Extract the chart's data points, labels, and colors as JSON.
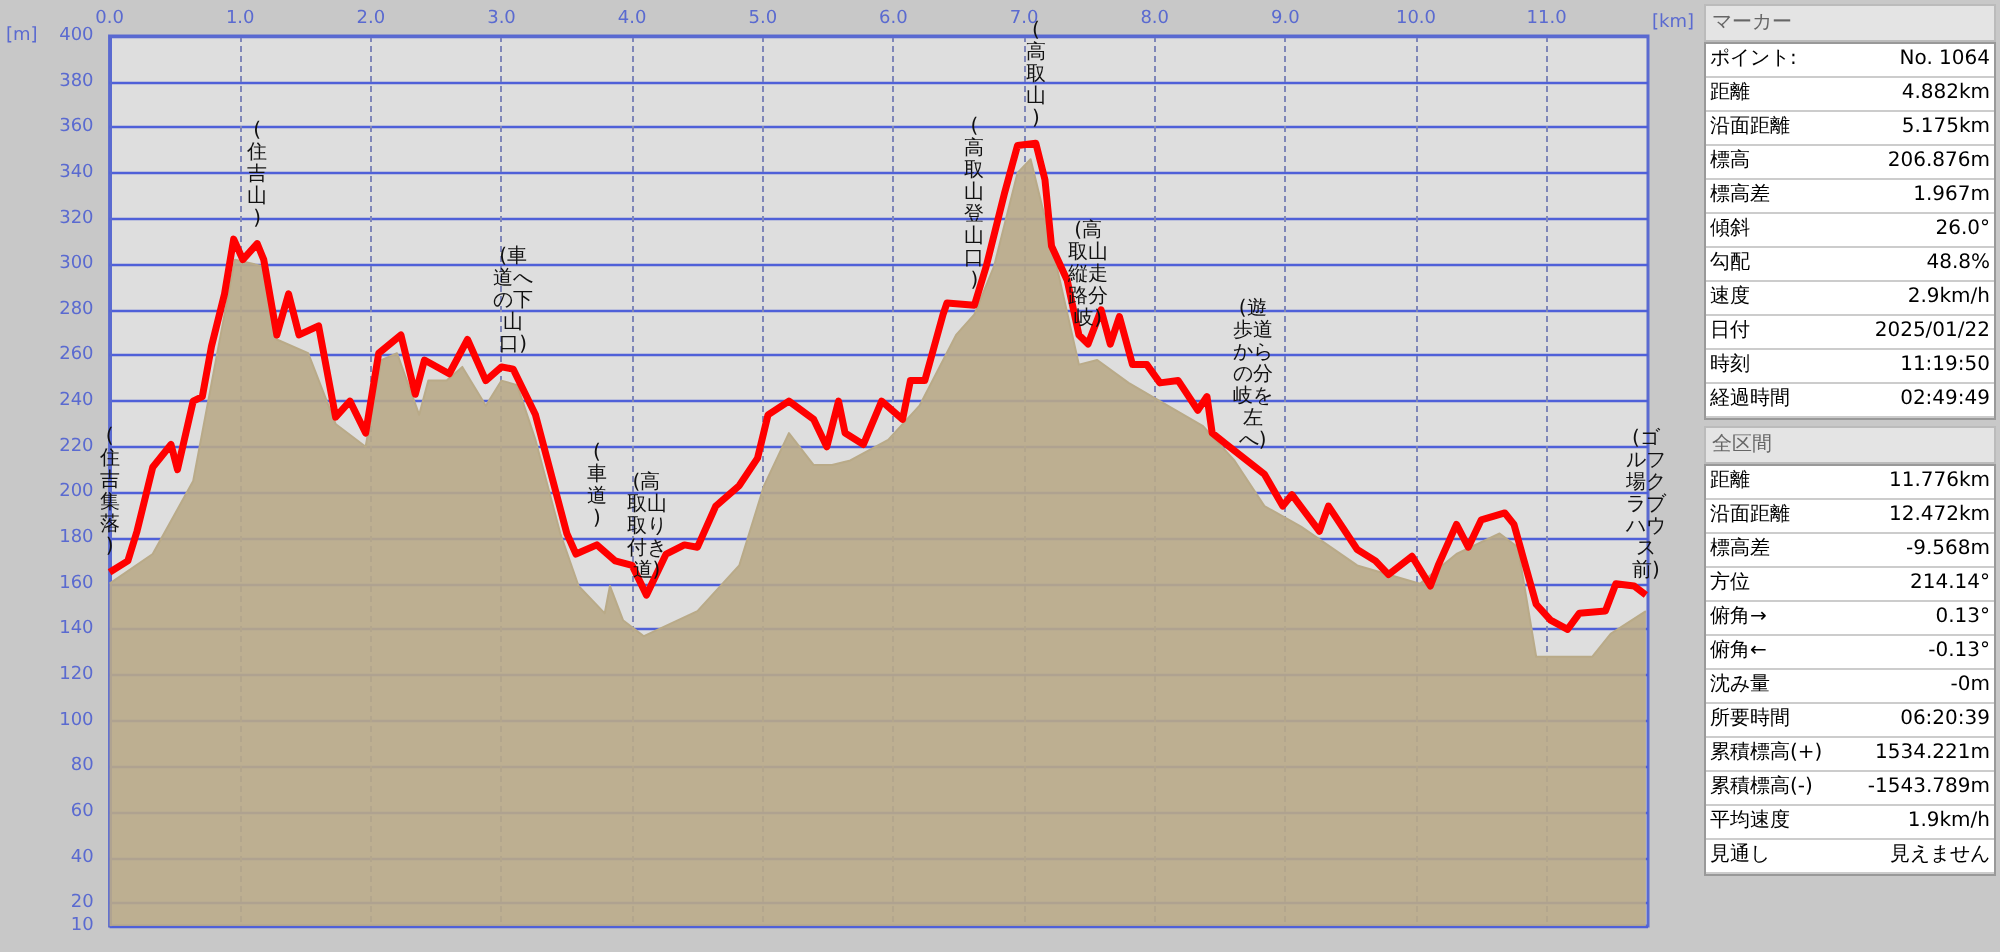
{
  "chart_data": [
    {
      "type": "line",
      "xlabel": "[km]",
      "ylabel": "[m]",
      "xlim": [
        0,
        11.776
      ],
      "ylim": [
        10,
        400
      ],
      "xticks": [
        {
          "value": 0,
          "label": "0.0"
        },
        {
          "value": 1,
          "label": "1.0"
        },
        {
          "value": 2,
          "label": "2.0"
        },
        {
          "value": 3,
          "label": "3.0"
        },
        {
          "value": 4,
          "label": "4.0"
        },
        {
          "value": 5,
          "label": "5.0"
        },
        {
          "value": 6,
          "label": "6.0"
        },
        {
          "value": 7,
          "label": "7.0"
        },
        {
          "value": 8,
          "label": "8.0"
        },
        {
          "value": 9,
          "label": "9.0"
        },
        {
          "value": 10,
          "label": "10.0"
        },
        {
          "value": 11,
          "label": "11.0"
        }
      ],
      "yticks": [
        10,
        20,
        40,
        60,
        80,
        100,
        120,
        140,
        160,
        180,
        200,
        220,
        240,
        260,
        280,
        300,
        320,
        340,
        360,
        380,
        400
      ],
      "grid": true,
      "marker": "none",
      "line_style": "solid",
      "series": [
        {
          "type": "area",
          "color": "#b9aa88",
          "x": [
            0,
            0.33,
            0.64,
            0.88,
            0.96,
            1.18,
            1.28,
            1.52,
            1.73,
            1.96,
            2.08,
            2.2,
            2.37,
            2.44,
            2.58,
            2.7,
            2.88,
            3.0,
            3.12,
            3.26,
            3.45,
            3.59,
            3.79,
            3.83,
            3.93,
            4.09,
            4.5,
            4.82,
            5.01,
            5.2,
            5.39,
            5.53,
            5.67,
            5.96,
            6.2,
            6.48,
            6.62,
            6.77,
            6.95,
            7.05,
            7.23,
            7.42,
            7.56,
            7.8,
            8.04,
            8.37,
            8.61,
            8.84,
            9.12,
            9.55,
            10.03,
            10.31,
            10.64,
            10.78,
            10.92,
            11.35,
            11.49,
            11.76
          ],
          "values": [
            160,
            173,
            205,
            278,
            302,
            299,
            267,
            261,
            230,
            220,
            258,
            261,
            234,
            249,
            249,
            255,
            238,
            249,
            247,
            223,
            182,
            159,
            147,
            159,
            144,
            137,
            148,
            168,
            203,
            226,
            212,
            212,
            214,
            223,
            238,
            269,
            278,
            299,
            340,
            346,
            304,
            256,
            258,
            248,
            240,
            229,
            214,
            194,
            185,
            168,
            160,
            173,
            182,
            176,
            128,
            128,
            138,
            148
          ]
        },
        {
          "type": "line",
          "color": "#ff0000",
          "x": [
            0,
            0.14,
            0.21,
            0.33,
            0.47,
            0.52,
            0.64,
            0.71,
            0.78,
            0.88,
            0.95,
            1.02,
            1.13,
            1.18,
            1.28,
            1.37,
            1.45,
            1.6,
            1.73,
            1.84,
            1.96,
            2.06,
            2.23,
            2.34,
            2.41,
            2.6,
            2.74,
            2.88,
            3.0,
            3.09,
            3.26,
            3.38,
            3.5,
            3.57,
            3.73,
            3.87,
            4.0,
            4.11,
            4.26,
            4.4,
            4.5,
            4.64,
            4.82,
            4.96,
            5.04,
            5.2,
            5.39,
            5.49,
            5.58,
            5.63,
            5.77,
            5.91,
            6.07,
            6.13,
            6.24,
            6.38,
            6.41,
            6.62,
            6.71,
            6.85,
            6.95,
            7.09,
            7.16,
            7.21,
            7.33,
            7.42,
            7.49,
            7.59,
            7.66,
            7.73,
            7.83,
            7.94,
            8.04,
            8.18,
            8.33,
            8.4,
            8.44,
            8.55,
            8.75,
            8.84,
            8.98,
            9.05,
            9.26,
            9.33,
            9.55,
            9.69,
            9.79,
            9.97,
            10.11,
            10.17,
            10.31,
            10.4,
            10.5,
            10.68,
            10.75,
            10.92,
            11.03,
            11.16,
            11.25,
            11.45,
            11.53,
            11.67,
            11.76
          ],
          "values": [
            165,
            170,
            183,
            211,
            221,
            210,
            240,
            242,
            264,
            287,
            311,
            302,
            309,
            302,
            269,
            287,
            269,
            273,
            233,
            240,
            226,
            261,
            269,
            243,
            258,
            252,
            267,
            249,
            255,
            254,
            234,
            208,
            182,
            173,
            177,
            170,
            168,
            155,
            173,
            177,
            176,
            194,
            203,
            215,
            234,
            240,
            232,
            220,
            240,
            226,
            221,
            240,
            232,
            249,
            249,
            278,
            283,
            282,
            299,
            331,
            352,
            353,
            337,
            308,
            293,
            269,
            265,
            280,
            265,
            277,
            256,
            256,
            248,
            249,
            236,
            242,
            226,
            221,
            212,
            208,
            194,
            199,
            183,
            194,
            175,
            170,
            164,
            172,
            159,
            168,
            186,
            176,
            188,
            191,
            186,
            151,
            144,
            140,
            147,
            148,
            160,
            159,
            155
          ]
        }
      ],
      "annotations": [
        {
          "text": "(住吉集落)",
          "x": 0,
          "y": 165
        },
        {
          "text": "(住吉山)",
          "x": 1.13,
          "y": 309
        },
        {
          "text": "(車道への下山口)",
          "x": 3.09,
          "y": 254
        },
        {
          "text": "(車道)",
          "x": 3.73,
          "y": 177
        },
        {
          "text": "(高取山取り付き道)",
          "x": 4.11,
          "y": 155
        },
        {
          "text": "(高取山登山口)",
          "x": 6.62,
          "y": 282
        },
        {
          "text": "(高取山)",
          "x": 7.09,
          "y": 353
        },
        {
          "text": "(高取山縦走路分岐)",
          "x": 7.49,
          "y": 265
        },
        {
          "text": "(遊歩道からの分岐を左へ)",
          "x": 8.75,
          "y": 212
        },
        {
          "text": "(ゴルフ場クラブハウス前)",
          "x": 11.76,
          "y": 155
        }
      ]
    },
    {
      "type": "other",
      "title": "マーカー",
      "annotations": [
        "ポイント:",
        "No. 1064",
        "距離",
        "4.882km",
        "沿面距離",
        "5.175km",
        "標高",
        "206.876m",
        "標高差",
        "1.967m",
        "傾斜",
        "26.0°",
        "勾配",
        "48.8%",
        "速度",
        "2.9km/h",
        "日付",
        "2025/01/22",
        "時刻",
        "11:19:50",
        "経過時間",
        "02:49:49"
      ]
    },
    {
      "type": "other",
      "title": "全区間",
      "annotations": [
        "距離",
        "11.776km",
        "沿面距離",
        "12.472km",
        "標高差",
        "-9.568m",
        "方位",
        "214.14°",
        "俯角→",
        "0.13°",
        "俯角←",
        "-0.13°",
        "沈み量",
        "-0m",
        "所要時間",
        "06:20:39",
        "累積標高(+)",
        "1534.221m",
        "累積標高(-)",
        "-1543.789m",
        "平均速度",
        "1.9km/h",
        "見通し",
        "見えません"
      ]
    }
  ]
}
